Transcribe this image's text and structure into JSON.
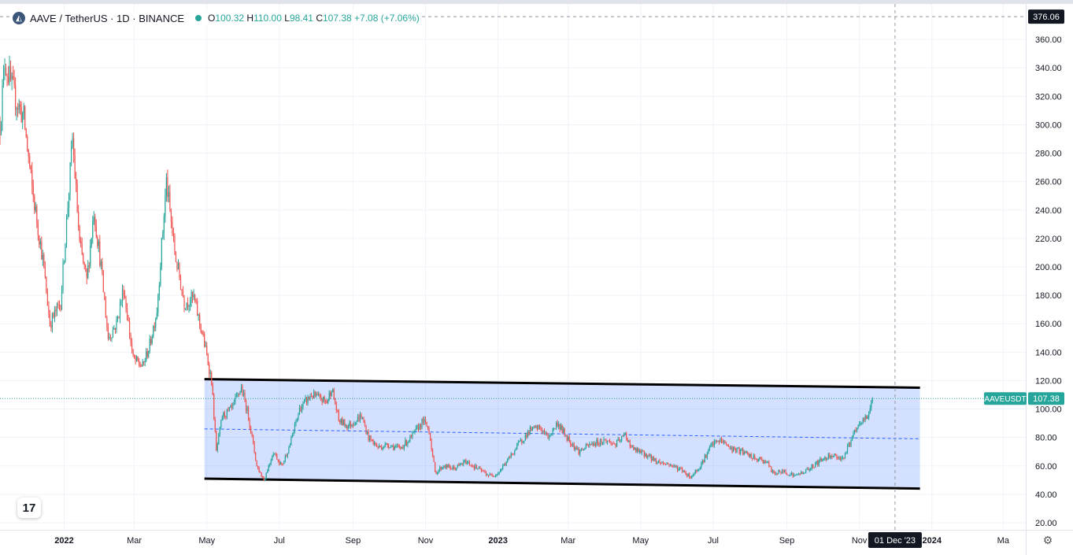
{
  "header": {
    "symbol": "AAVE / TetherUS · 1D · BINANCE",
    "logo_icon": "aave-logo",
    "ohlc": {
      "o_label": "O",
      "o": "100.32",
      "h_label": "H",
      "h": "110.00",
      "l_label": "L",
      "l": "98.41",
      "c_label": "C",
      "c": "107.38",
      "change": "+7.08 (+7.06%)"
    }
  },
  "tv_logo": "17",
  "colors": {
    "up": "#26a69a",
    "down": "#ef5350",
    "channel_fill": "#2962ff",
    "channel_line": "#000000",
    "midline": "#2962ff",
    "price_badge": "#26a69a",
    "crosshair_badge": "#131722"
  },
  "chart_data": {
    "type": "candlestick",
    "symbol": "AAVEUSDT",
    "ylim": [
      15,
      385
    ],
    "y_ticks": [
      20,
      40,
      60,
      80,
      100,
      120,
      140,
      160,
      180,
      200,
      220,
      240,
      260,
      280,
      300,
      320,
      340,
      360
    ],
    "y_tick_labels": [
      "20.00",
      "40.00",
      "60.00",
      "80.00",
      "100.00",
      "120.00",
      "140.00",
      "160.00",
      "180.00",
      "200.00",
      "220.00",
      "240.00",
      "260.00",
      "280.00",
      "300.00",
      "320.00",
      "340.00",
      "360.00"
    ],
    "x_range": [
      "2021-11-08",
      "2024-03-20"
    ],
    "x_ticks": [
      {
        "date": "2022-01-01",
        "label": "2022",
        "bold": true
      },
      {
        "date": "2022-03-01",
        "label": "Mar"
      },
      {
        "date": "2022-05-01",
        "label": "May"
      },
      {
        "date": "2022-07-01",
        "label": "Jul"
      },
      {
        "date": "2022-09-01",
        "label": "Sep"
      },
      {
        "date": "2022-11-01",
        "label": "Nov"
      },
      {
        "date": "2023-01-01",
        "label": "2023",
        "bold": true
      },
      {
        "date": "2023-03-01",
        "label": "Mar"
      },
      {
        "date": "2023-05-01",
        "label": "May"
      },
      {
        "date": "2023-07-01",
        "label": "Jul"
      },
      {
        "date": "2023-09-01",
        "label": "Sep"
      },
      {
        "date": "2023-11-01",
        "label": "Nov"
      },
      {
        "date": "2024-01-01",
        "label": "2024",
        "bold": true
      },
      {
        "date": "2024-03-01",
        "label": "Ma"
      }
    ],
    "price_path": [
      [
        "2021-11-08",
        300
      ],
      [
        "2021-11-12",
        345
      ],
      [
        "2021-11-20",
        320
      ],
      [
        "2021-11-28",
        305
      ],
      [
        "2021-12-05",
        255
      ],
      [
        "2021-12-14",
        205
      ],
      [
        "2021-12-20",
        160
      ],
      [
        "2021-12-29",
        175
      ],
      [
        "2022-01-05",
        255
      ],
      [
        "2022-01-08",
        290
      ],
      [
        "2022-01-14",
        215
      ],
      [
        "2022-01-20",
        190
      ],
      [
        "2022-01-26",
        240
      ],
      [
        "2022-02-01",
        200
      ],
      [
        "2022-02-07",
        150
      ],
      [
        "2022-02-14",
        160
      ],
      [
        "2022-02-20",
        185
      ],
      [
        "2022-02-28",
        135
      ],
      [
        "2022-03-08",
        130
      ],
      [
        "2022-03-14",
        145
      ],
      [
        "2022-03-20",
        170
      ],
      [
        "2022-03-28",
        260
      ],
      [
        "2022-04-04",
        210
      ],
      [
        "2022-04-12",
        175
      ],
      [
        "2022-04-20",
        178
      ],
      [
        "2022-04-28",
        150
      ],
      [
        "2022-05-05",
        120
      ],
      [
        "2022-05-09",
        70
      ],
      [
        "2022-05-14",
        95
      ],
      [
        "2022-05-22",
        100
      ],
      [
        "2022-05-30",
        115
      ],
      [
        "2022-06-05",
        95
      ],
      [
        "2022-06-12",
        60
      ],
      [
        "2022-06-18",
        50
      ],
      [
        "2022-06-26",
        70
      ],
      [
        "2022-07-03",
        60
      ],
      [
        "2022-07-10",
        75
      ],
      [
        "2022-07-18",
        100
      ],
      [
        "2022-07-28",
        110
      ],
      [
        "2022-08-10",
        105
      ],
      [
        "2022-08-14",
        115
      ],
      [
        "2022-08-20",
        92
      ],
      [
        "2022-08-28",
        88
      ],
      [
        "2022-09-08",
        95
      ],
      [
        "2022-09-14",
        80
      ],
      [
        "2022-09-22",
        73
      ],
      [
        "2022-10-01",
        75
      ],
      [
        "2022-10-10",
        72
      ],
      [
        "2022-10-20",
        80
      ],
      [
        "2022-10-30",
        92
      ],
      [
        "2022-11-04",
        85
      ],
      [
        "2022-11-09",
        55
      ],
      [
        "2022-11-16",
        60
      ],
      [
        "2022-11-25",
        58
      ],
      [
        "2022-12-05",
        63
      ],
      [
        "2022-12-15",
        58
      ],
      [
        "2022-12-25",
        53
      ],
      [
        "2023-01-01",
        55
      ],
      [
        "2023-01-10",
        65
      ],
      [
        "2023-01-18",
        75
      ],
      [
        "2023-01-28",
        85
      ],
      [
        "2023-02-05",
        87
      ],
      [
        "2023-02-12",
        80
      ],
      [
        "2023-02-20",
        90
      ],
      [
        "2023-02-28",
        80
      ],
      [
        "2023-03-10",
        70
      ],
      [
        "2023-03-20",
        75
      ],
      [
        "2023-04-01",
        78
      ],
      [
        "2023-04-10",
        75
      ],
      [
        "2023-04-18",
        82
      ],
      [
        "2023-04-24",
        72
      ],
      [
        "2023-05-05",
        68
      ],
      [
        "2023-05-15",
        63
      ],
      [
        "2023-05-25",
        61
      ],
      [
        "2023-06-05",
        57
      ],
      [
        "2023-06-12",
        52
      ],
      [
        "2023-06-20",
        60
      ],
      [
        "2023-06-30",
        75
      ],
      [
        "2023-07-08",
        78
      ],
      [
        "2023-07-16",
        72
      ],
      [
        "2023-07-25",
        70
      ],
      [
        "2023-08-05",
        65
      ],
      [
        "2023-08-15",
        63
      ],
      [
        "2023-08-20",
        55
      ],
      [
        "2023-08-30",
        56
      ],
      [
        "2023-09-08",
        53
      ],
      [
        "2023-09-18",
        57
      ],
      [
        "2023-09-28",
        63
      ],
      [
        "2023-10-08",
        68
      ],
      [
        "2023-10-18",
        65
      ],
      [
        "2023-10-26",
        80
      ],
      [
        "2023-11-02",
        90
      ],
      [
        "2023-11-08",
        95
      ],
      [
        "2023-11-12",
        107.38
      ]
    ],
    "last_price": 107.38,
    "last_price_label": "107.38",
    "series_badge": "AAVEUSDT",
    "crosshair": {
      "date": "2023-12-01",
      "date_label": "01 Dec '23",
      "price": 376.06,
      "price_label": "376.06"
    },
    "channel": {
      "upper": [
        [
          "2022-04-29",
          121
        ],
        [
          "2023-12-22",
          115
        ]
      ],
      "lower": [
        [
          "2022-04-29",
          51
        ],
        [
          "2023-12-22",
          44
        ]
      ],
      "mid": [
        [
          "2022-04-29",
          86
        ],
        [
          "2023-12-22",
          79
        ]
      ]
    }
  }
}
